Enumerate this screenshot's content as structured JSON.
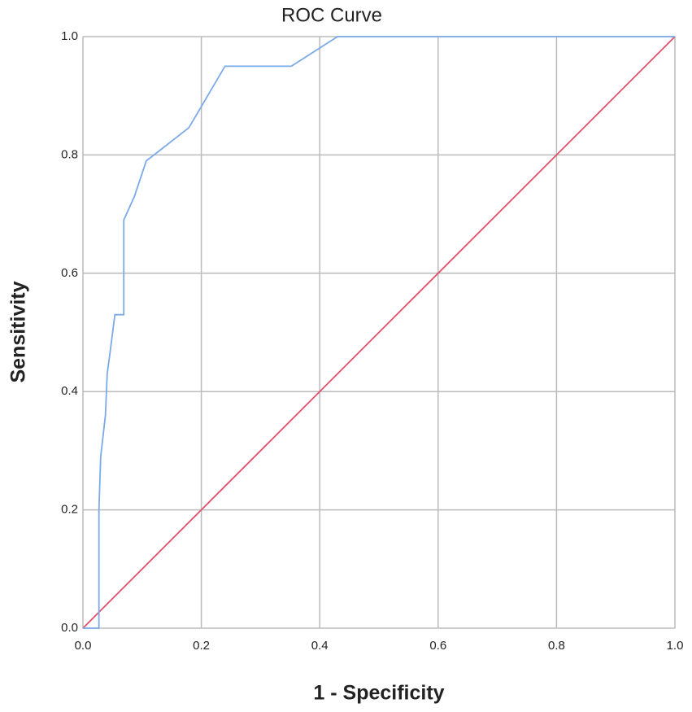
{
  "chart_data": {
    "type": "line",
    "title": "ROC Curve",
    "xlabel": "1 - Specificity",
    "ylabel": "Sensitivity",
    "xlim": [
      0,
      1
    ],
    "ylim": [
      0,
      1
    ],
    "xticks": [
      {
        "value": 0,
        "label": "0.0"
      },
      0.2,
      0.4,
      0.6,
      0.8,
      {
        "value": 1,
        "label": "1.0"
      }
    ],
    "yticks": [
      {
        "value": 0,
        "label": "0.0"
      },
      0.2,
      0.4,
      0.6,
      0.8,
      {
        "value": 1,
        "label": "1.0"
      }
    ],
    "grid": true,
    "series": [
      {
        "color": "#7aaae8",
        "x": [
          0,
          0.027,
          0.027,
          0.03,
          0.038,
          0.041,
          0.045,
          0.054,
          0.069,
          0.069,
          0.087,
          0.107,
          0.12,
          0.179,
          0.24,
          0.352,
          0.43,
          1
        ],
        "values": [
          0,
          0,
          0.2,
          0.29,
          0.36,
          0.43,
          0.46,
          0.53,
          0.53,
          0.69,
          0.73,
          0.79,
          0.8,
          0.846,
          0.95,
          0.95,
          1,
          1
        ]
      },
      {
        "color": "#e0506a",
        "x": [
          0,
          1
        ],
        "values": [
          0,
          1
        ]
      }
    ]
  }
}
